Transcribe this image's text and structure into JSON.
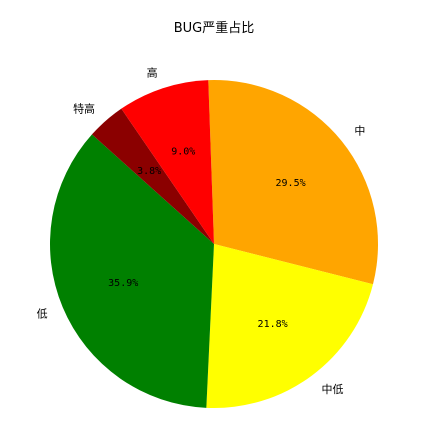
{
  "chart_data": {
    "type": "pie",
    "title": "BUG严重占比",
    "slices": [
      {
        "label": "中",
        "value": 29.5,
        "pct_label": "29.5%",
        "color": "#FFA500"
      },
      {
        "label": "中低",
        "value": 21.8,
        "pct_label": "21.8%",
        "color": "#FFFF00"
      },
      {
        "label": "低",
        "value": 35.9,
        "pct_label": "35.9%",
        "color": "#008000"
      },
      {
        "label": "特高",
        "value": 3.8,
        "pct_label": "3.8%",
        "color": "#8B0000"
      },
      {
        "label": "高",
        "value": 9.0,
        "pct_label": "9.0%",
        "color": "#FF0000"
      }
    ]
  }
}
